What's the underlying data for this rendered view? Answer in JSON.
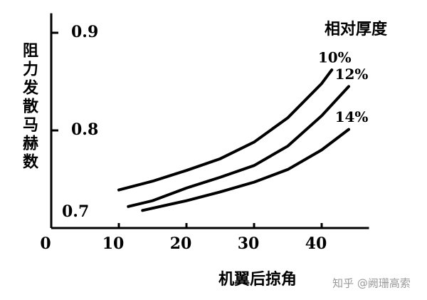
{
  "chart_data": {
    "type": "line",
    "x_label": "机翼后掠角",
    "y_label": "阻力发散马赫数",
    "legend_title": "相对厚度",
    "watermark": "知乎 @阙珊高索",
    "xlim": [
      0,
      47
    ],
    "xticks": [
      0,
      10,
      20,
      30,
      40
    ],
    "ylim": [
      0.7,
      0.92
    ],
    "yticks": [
      0.7,
      0.8,
      0.9
    ],
    "series": [
      {
        "name": "10%",
        "color": "#000000",
        "x": [
          10,
          15,
          20,
          25,
          30,
          35,
          40,
          41.5
        ],
        "values": [
          0.739,
          0.748,
          0.759,
          0.771,
          0.788,
          0.813,
          0.848,
          0.862
        ]
      },
      {
        "name": "12%",
        "color": "#000000",
        "x": [
          11.4,
          15,
          20,
          25,
          30,
          35,
          40,
          44
        ],
        "values": [
          0.722,
          0.728,
          0.741,
          0.752,
          0.764,
          0.784,
          0.815,
          0.845
        ]
      },
      {
        "name": "14%",
        "color": "#000000",
        "x": [
          13.5,
          20,
          25,
          30,
          35,
          40,
          44
        ],
        "values": [
          0.718,
          0.728,
          0.737,
          0.747,
          0.76,
          0.78,
          0.801
        ]
      }
    ]
  }
}
